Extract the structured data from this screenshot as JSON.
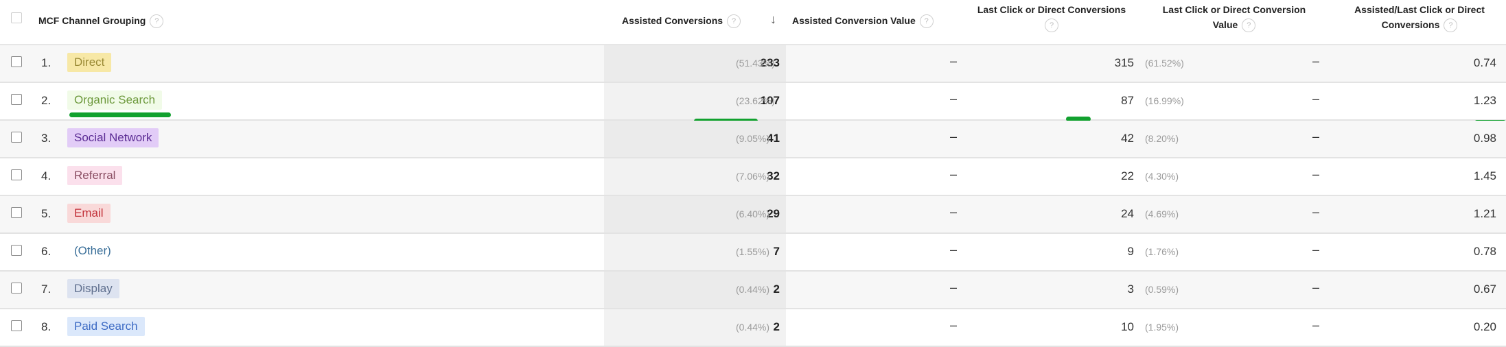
{
  "header": {
    "channel_grouping": "MCF Channel Grouping",
    "assisted_conversions": "Assisted Conversions",
    "sort_icon": "arrow-down-icon",
    "assisted_conversion_value": "Assisted Conversion Value",
    "last_click_conversions_line1": "Last Click or Direct Conversions",
    "last_click_value_line1": "Last Click or Direct Conversion",
    "last_click_value_line2": "Value",
    "ratio_line1": "Assisted/Last Click or Direct",
    "ratio_line2": "Conversions",
    "help_glyph": "?"
  },
  "rows": [
    {
      "index": "1.",
      "channel": "Direct",
      "assisted": "233",
      "assisted_pct": "(51.43%)",
      "assisted_value": "–",
      "last_click": "315",
      "last_click_pct": "(61.52%)",
      "last_click_value": "–",
      "ratio": "0.74",
      "bg": "#f7e8a6",
      "fg": "#9a8a35"
    },
    {
      "index": "2.",
      "channel": "Organic Search",
      "assisted": "107",
      "assisted_pct": "(23.62%)",
      "assisted_value": "–",
      "last_click": "87",
      "last_click_pct": "(16.99%)",
      "last_click_value": "–",
      "ratio": "1.23",
      "bg": "#f1fbe8",
      "fg": "#6e9a3e",
      "highlighted": true
    },
    {
      "index": "3.",
      "channel": "Social Network",
      "assisted": "41",
      "assisted_pct": "(9.05%)",
      "assisted_value": "–",
      "last_click": "42",
      "last_click_pct": "(8.20%)",
      "last_click_value": "–",
      "ratio": "0.98",
      "bg": "#e2ccf7",
      "fg": "#5b2b94"
    },
    {
      "index": "4.",
      "channel": "Referral",
      "assisted": "32",
      "assisted_pct": "(7.06%)",
      "assisted_value": "–",
      "last_click": "22",
      "last_click_pct": "(4.30%)",
      "last_click_value": "–",
      "ratio": "1.45",
      "bg": "#fbe0ec",
      "fg": "#8a4d62"
    },
    {
      "index": "5.",
      "channel": "Email",
      "assisted": "29",
      "assisted_pct": "(6.40%)",
      "assisted_value": "–",
      "last_click": "24",
      "last_click_pct": "(4.69%)",
      "last_click_value": "–",
      "ratio": "1.21",
      "bg": "#f9d9d9",
      "fg": "#c3323b"
    },
    {
      "index": "6.",
      "channel": "(Other)",
      "assisted": "7",
      "assisted_pct": "(1.55%)",
      "assisted_value": "–",
      "last_click": "9",
      "last_click_pct": "(1.76%)",
      "last_click_value": "–",
      "ratio": "0.78",
      "bg": "transparent",
      "fg": "#3a6f99"
    },
    {
      "index": "7.",
      "channel": "Display",
      "assisted": "2",
      "assisted_pct": "(0.44%)",
      "assisted_value": "–",
      "last_click": "3",
      "last_click_pct": "(0.59%)",
      "last_click_value": "–",
      "ratio": "0.67",
      "bg": "#dde3f0",
      "fg": "#5f6f8e"
    },
    {
      "index": "8.",
      "channel": "Paid Search",
      "assisted": "2",
      "assisted_pct": "(0.44%)",
      "assisted_value": "–",
      "last_click": "10",
      "last_click_pct": "(1.95%)",
      "last_click_value": "–",
      "ratio": "0.20",
      "bg": "#dbe8fb",
      "fg": "#3d6bc4"
    }
  ],
  "annotations": {
    "highlight_color": "#12a12f"
  }
}
